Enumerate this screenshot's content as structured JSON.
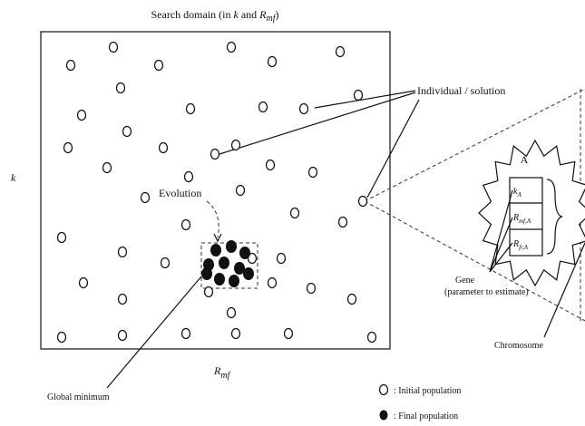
{
  "title": {
    "prefix": "Search domain (in ",
    "k": "k",
    "mid": " and ",
    "R": "R",
    "sub": "mf",
    "suffix": ")"
  },
  "y_axis": "k",
  "x_axis": {
    "R": "R",
    "sub": "mf"
  },
  "labels": {
    "individual": "Individual / solution",
    "evolution": "Evolution",
    "global_minimum": "Global minimum",
    "gene": "Gene",
    "gene_note": "(parameter to estimate)",
    "chromosome": "Chromosome",
    "zoom": "A"
  },
  "genes": [
    {
      "base": "k",
      "sub": "A"
    },
    {
      "base": "R",
      "sub": "mf,A"
    },
    {
      "base": "R",
      "sub": "fr,A"
    }
  ],
  "legend": [
    {
      "label": ": Initial population"
    },
    {
      "label": ": Final population"
    }
  ]
}
